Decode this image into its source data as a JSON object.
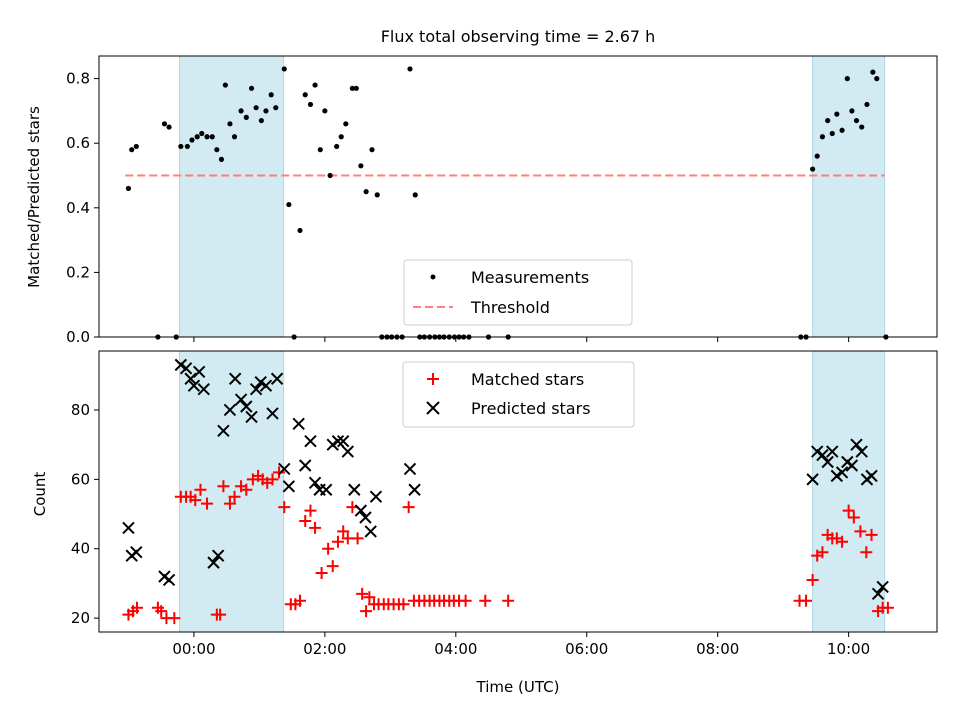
{
  "chart_data": [
    {
      "type": "scatter",
      "title": "Flux total observing time = 2.67 h",
      "ylabel": "Matched/Predicted stars",
      "xlabel": "",
      "xlim_hours": [
        -1.45,
        11.35
      ],
      "ylim": [
        0,
        0.87
      ],
      "x_ticks": [
        {
          "hour": 0,
          "label": ""
        },
        {
          "hour": 2,
          "label": ""
        },
        {
          "hour": 4,
          "label": ""
        },
        {
          "hour": 6,
          "label": ""
        },
        {
          "hour": 8,
          "label": ""
        },
        {
          "hour": 10,
          "label": ""
        }
      ],
      "y_ticks": [
        {
          "value": 0.0,
          "label": "0.0"
        },
        {
          "value": 0.2,
          "label": "0.2"
        },
        {
          "value": 0.4,
          "label": "0.4"
        },
        {
          "value": 0.6,
          "label": "0.6"
        },
        {
          "value": 0.8,
          "label": "0.8"
        }
      ],
      "shaded_regions_hours": [
        [
          -0.22,
          1.37
        ],
        [
          9.45,
          10.55
        ]
      ],
      "shade_color": "#add8e6",
      "threshold": {
        "name": "Threshold",
        "value": 0.5,
        "x_range_hours": [
          -1.05,
          10.55
        ],
        "color": "#ff7f7f"
      },
      "series": [
        {
          "name": "Measurements",
          "marker": "dot",
          "color": "#000000",
          "points": [
            [
              -1.0,
              0.46
            ],
            [
              -0.95,
              0.58
            ],
            [
              -0.88,
              0.59
            ],
            [
              -0.55,
              0.0
            ],
            [
              -0.45,
              0.66
            ],
            [
              -0.38,
              0.65
            ],
            [
              -0.27,
              0.0
            ],
            [
              -0.2,
              0.59
            ],
            [
              -0.1,
              0.59
            ],
            [
              -0.03,
              0.61
            ],
            [
              0.05,
              0.62
            ],
            [
              0.12,
              0.63
            ],
            [
              0.2,
              0.62
            ],
            [
              0.28,
              0.62
            ],
            [
              0.35,
              0.58
            ],
            [
              0.42,
              0.55
            ],
            [
              0.48,
              0.78
            ],
            [
              0.55,
              0.66
            ],
            [
              0.62,
              0.62
            ],
            [
              0.72,
              0.7
            ],
            [
              0.8,
              0.68
            ],
            [
              0.88,
              0.77
            ],
            [
              0.95,
              0.71
            ],
            [
              1.03,
              0.67
            ],
            [
              1.1,
              0.7
            ],
            [
              1.18,
              0.75
            ],
            [
              1.25,
              0.71
            ],
            [
              1.38,
              0.83
            ],
            [
              1.45,
              0.41
            ],
            [
              1.53,
              0.0
            ],
            [
              1.62,
              0.33
            ],
            [
              1.7,
              0.75
            ],
            [
              1.78,
              0.72
            ],
            [
              1.85,
              0.78
            ],
            [
              1.93,
              0.58
            ],
            [
              2.0,
              0.7
            ],
            [
              2.08,
              0.5
            ],
            [
              2.18,
              0.59
            ],
            [
              2.25,
              0.62
            ],
            [
              2.32,
              0.66
            ],
            [
              2.42,
              0.77
            ],
            [
              2.48,
              0.77
            ],
            [
              2.55,
              0.53
            ],
            [
              2.63,
              0.45
            ],
            [
              2.72,
              0.58
            ],
            [
              2.8,
              0.44
            ],
            [
              2.87,
              0.0
            ],
            [
              2.95,
              0.0
            ],
            [
              3.02,
              0.0
            ],
            [
              3.1,
              0.0
            ],
            [
              3.18,
              0.0
            ],
            [
              3.3,
              0.83
            ],
            [
              3.38,
              0.44
            ],
            [
              3.45,
              0.0
            ],
            [
              3.52,
              0.0
            ],
            [
              3.6,
              0.0
            ],
            [
              3.68,
              0.0
            ],
            [
              3.75,
              0.0
            ],
            [
              3.82,
              0.0
            ],
            [
              3.9,
              0.0
            ],
            [
              3.98,
              0.0
            ],
            [
              4.05,
              0.0
            ],
            [
              4.12,
              0.0
            ],
            [
              4.2,
              0.0
            ],
            [
              4.5,
              0.0
            ],
            [
              4.8,
              0.0
            ],
            [
              9.27,
              0.0
            ],
            [
              9.35,
              0.0
            ],
            [
              9.45,
              0.52
            ],
            [
              9.52,
              0.56
            ],
            [
              9.6,
              0.62
            ],
            [
              9.68,
              0.67
            ],
            [
              9.75,
              0.63
            ],
            [
              9.82,
              0.69
            ],
            [
              9.9,
              0.64
            ],
            [
              9.98,
              0.8
            ],
            [
              10.05,
              0.7
            ],
            [
              10.12,
              0.67
            ],
            [
              10.2,
              0.65
            ],
            [
              10.28,
              0.72
            ],
            [
              10.37,
              0.82
            ],
            [
              10.43,
              0.8
            ],
            [
              10.57,
              0.0
            ]
          ]
        }
      ],
      "legend": {
        "position": "lower-center",
        "entries": [
          "Measurements",
          "Threshold"
        ]
      }
    },
    {
      "type": "scatter",
      "title": "",
      "ylabel": "Count",
      "xlabel": "Time (UTC)",
      "xlim_hours": [
        -1.45,
        11.35
      ],
      "ylim": [
        16,
        97
      ],
      "x_ticks": [
        {
          "hour": 0,
          "label": "00:00"
        },
        {
          "hour": 2,
          "label": "02:00"
        },
        {
          "hour": 4,
          "label": "04:00"
        },
        {
          "hour": 6,
          "label": "06:00"
        },
        {
          "hour": 8,
          "label": "08:00"
        },
        {
          "hour": 10,
          "label": "10:00"
        }
      ],
      "y_ticks": [
        {
          "value": 20,
          "label": "20"
        },
        {
          "value": 40,
          "label": "40"
        },
        {
          "value": 60,
          "label": "60"
        },
        {
          "value": 80,
          "label": "80"
        }
      ],
      "shaded_regions_hours": [
        [
          -0.22,
          1.37
        ],
        [
          9.45,
          10.55
        ]
      ],
      "shade_color": "#add8e6",
      "series": [
        {
          "name": "Matched stars",
          "marker": "plus",
          "color": "#ff0000",
          "points": [
            [
              -1.0,
              21
            ],
            [
              -0.93,
              22
            ],
            [
              -0.87,
              23
            ],
            [
              -0.55,
              23
            ],
            [
              -0.5,
              22
            ],
            [
              -0.42,
              20
            ],
            [
              -0.3,
              20
            ],
            [
              -0.2,
              55
            ],
            [
              -0.12,
              55
            ],
            [
              -0.05,
              55
            ],
            [
              0.02,
              54
            ],
            [
              0.1,
              57
            ],
            [
              0.2,
              53
            ],
            [
              0.35,
              21
            ],
            [
              0.4,
              21
            ],
            [
              0.45,
              58
            ],
            [
              0.55,
              53
            ],
            [
              0.62,
              55
            ],
            [
              0.72,
              58
            ],
            [
              0.8,
              57
            ],
            [
              0.9,
              60
            ],
            [
              0.98,
              61
            ],
            [
              1.05,
              60
            ],
            [
              1.12,
              59
            ],
            [
              1.2,
              60
            ],
            [
              1.3,
              62
            ],
            [
              1.38,
              52
            ],
            [
              1.48,
              24
            ],
            [
              1.55,
              24
            ],
            [
              1.62,
              25
            ],
            [
              1.7,
              48
            ],
            [
              1.78,
              51
            ],
            [
              1.85,
              46
            ],
            [
              1.95,
              33
            ],
            [
              2.05,
              40
            ],
            [
              2.12,
              35
            ],
            [
              2.2,
              42
            ],
            [
              2.28,
              45
            ],
            [
              2.35,
              43
            ],
            [
              2.42,
              52
            ],
            [
              2.5,
              43
            ],
            [
              2.57,
              27
            ],
            [
              2.63,
              22
            ],
            [
              2.68,
              26
            ],
            [
              2.75,
              24
            ],
            [
              2.82,
              24
            ],
            [
              2.9,
              24
            ],
            [
              2.97,
              24
            ],
            [
              3.05,
              24
            ],
            [
              3.13,
              24
            ],
            [
              3.2,
              24
            ],
            [
              3.28,
              52
            ],
            [
              3.36,
              25
            ],
            [
              3.44,
              25
            ],
            [
              3.52,
              25
            ],
            [
              3.6,
              25
            ],
            [
              3.67,
              25
            ],
            [
              3.75,
              25
            ],
            [
              3.82,
              25
            ],
            [
              3.9,
              25
            ],
            [
              3.97,
              25
            ],
            [
              4.05,
              25
            ],
            [
              4.15,
              25
            ],
            [
              4.45,
              25
            ],
            [
              4.8,
              25
            ],
            [
              9.25,
              25
            ],
            [
              9.35,
              25
            ],
            [
              9.45,
              31
            ],
            [
              9.52,
              38
            ],
            [
              9.6,
              39
            ],
            [
              9.68,
              44
            ],
            [
              9.75,
              43
            ],
            [
              9.82,
              43
            ],
            [
              9.9,
              42
            ],
            [
              10.0,
              51
            ],
            [
              10.08,
              49
            ],
            [
              10.18,
              45
            ],
            [
              10.27,
              39
            ],
            [
              10.35,
              44
            ],
            [
              10.45,
              22
            ],
            [
              10.52,
              23
            ],
            [
              10.6,
              23
            ]
          ]
        },
        {
          "name": "Predicted stars",
          "marker": "x",
          "color": "#000000",
          "points": [
            [
              -1.0,
              46
            ],
            [
              -0.95,
              38
            ],
            [
              -0.88,
              39
            ],
            [
              -0.45,
              32
            ],
            [
              -0.38,
              31
            ],
            [
              -0.2,
              93
            ],
            [
              -0.12,
              92
            ],
            [
              -0.05,
              89
            ],
            [
              0.0,
              87
            ],
            [
              0.08,
              91
            ],
            [
              0.15,
              86
            ],
            [
              0.3,
              36
            ],
            [
              0.37,
              38
            ],
            [
              0.45,
              74
            ],
            [
              0.55,
              80
            ],
            [
              0.63,
              89
            ],
            [
              0.72,
              83
            ],
            [
              0.8,
              81
            ],
            [
              0.88,
              78
            ],
            [
              0.95,
              86
            ],
            [
              1.02,
              88
            ],
            [
              1.1,
              87
            ],
            [
              1.2,
              79
            ],
            [
              1.27,
              89
            ],
            [
              1.38,
              63
            ],
            [
              1.45,
              58
            ],
            [
              1.6,
              76
            ],
            [
              1.7,
              64
            ],
            [
              1.78,
              71
            ],
            [
              1.85,
              59
            ],
            [
              1.92,
              57
            ],
            [
              2.02,
              57
            ],
            [
              2.12,
              70
            ],
            [
              2.2,
              71
            ],
            [
              2.28,
              71
            ],
            [
              2.35,
              68
            ],
            [
              2.45,
              57
            ],
            [
              2.55,
              51
            ],
            [
              2.62,
              49
            ],
            [
              2.7,
              45
            ],
            [
              2.78,
              55
            ],
            [
              3.3,
              63
            ],
            [
              3.37,
              57
            ],
            [
              9.45,
              60
            ],
            [
              9.52,
              68
            ],
            [
              9.6,
              67
            ],
            [
              9.68,
              65
            ],
            [
              9.75,
              68
            ],
            [
              9.82,
              61
            ],
            [
              9.9,
              62
            ],
            [
              9.98,
              65
            ],
            [
              10.05,
              64
            ],
            [
              10.12,
              70
            ],
            [
              10.2,
              68
            ],
            [
              10.28,
              60
            ],
            [
              10.35,
              61
            ],
            [
              10.45,
              27
            ],
            [
              10.52,
              29
            ]
          ]
        }
      ],
      "legend": {
        "position": "upper-center",
        "entries": [
          "Matched stars",
          "Predicted stars"
        ]
      }
    }
  ]
}
